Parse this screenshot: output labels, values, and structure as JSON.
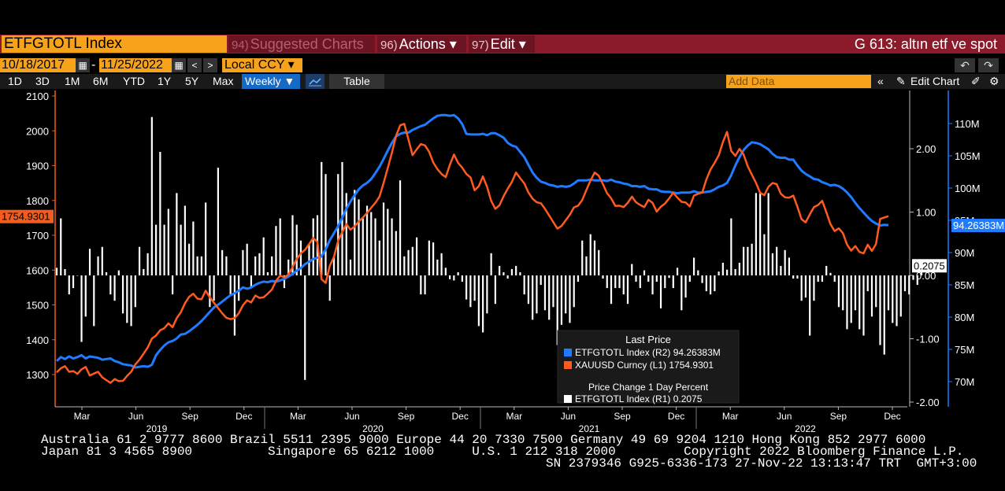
{
  "header": {
    "ticker": "ETFGTOTL Index",
    "tabs": [
      {
        "num": "94)",
        "label": "Suggested Charts"
      },
      {
        "num": "96)",
        "label": "Actions ▾"
      },
      {
        "num": "97)",
        "label": "Edit ▾"
      }
    ],
    "title": "G 613: altın etf ve spot"
  },
  "dates": {
    "start": "10/18/2017",
    "end": "11/25/2022",
    "currency": "Local CCY ▾"
  },
  "toolbar": {
    "ranges": [
      "1D",
      "3D",
      "1M",
      "6M",
      "YTD",
      "1Y",
      "5Y",
      "Max"
    ],
    "frequency": "Weekly ▼",
    "table_label": "Table",
    "add_data_placeholder": "Add Data",
    "edit_chart": "Edit Chart"
  },
  "colors": {
    "etf": "#1f7bff",
    "gold": "#ff5a1f",
    "bars": "#ffffff",
    "accent": "#f7a21b"
  },
  "chart_data": {
    "type": "line",
    "xaxis": {
      "month_ticks": [
        "Mar",
        "Jun",
        "Sep",
        "Dec",
        "Mar",
        "Jun",
        "Sep",
        "Dec",
        "Mar",
        "Jun",
        "Sep",
        "Dec",
        "Mar",
        "Jun",
        "Sep",
        "Dec"
      ],
      "year_labels": [
        "2019",
        "2020",
        "2021",
        "2022"
      ]
    },
    "left_axis": {
      "label": "L1",
      "ticks": [
        1300,
        1400,
        1500,
        1600,
        1700,
        1800,
        1900,
        2000,
        2100
      ],
      "range": [
        1190,
        2120
      ]
    },
    "right_axis_1": {
      "label": "R1",
      "ticks": [
        "2.00",
        "1.00",
        "0.00",
        "-1.00",
        "-2.00"
      ],
      "range": [
        -2.2,
        2.9
      ]
    },
    "right_axis_2": {
      "label": "R2",
      "ticks": [
        "110M",
        "105M",
        "100M",
        "95M",
        "90M",
        "85M",
        "80M",
        "75M",
        "70M"
      ],
      "range": [
        67.5,
        117.5
      ]
    },
    "legend": {
      "title1": "Last Price",
      "entries1": [
        {
          "name": "ETFGTOTL Index",
          "axis": "(R2)",
          "value": "94.26383M",
          "color": "#1f7bff"
        },
        {
          "name": "XAUUSD Curncy",
          "axis": "(L1)",
          "value": "1754.9301",
          "color": "#ff5a1f"
        }
      ],
      "title2": "Price Change 1 Day Percent",
      "entries2": [
        {
          "name": "ETFGTOTL Index",
          "axis": "(R1)",
          "value": "0.2075",
          "color": "#ffffff"
        }
      ]
    },
    "last_labels": {
      "gold": "1754.9301",
      "etf": "94.26383M",
      "change": "0.2075"
    },
    "series": [
      {
        "name": "XAUUSD Curncy",
        "axis": "L1",
        "values": [
          1306,
          1318,
          1324,
          1308,
          1310,
          1302,
          1315,
          1322,
          1297,
          1303,
          1308,
          1292,
          1284,
          1276,
          1287,
          1281,
          1282,
          1296,
          1308,
          1329,
          1343,
          1360,
          1378,
          1403,
          1412,
          1427,
          1433,
          1447,
          1436,
          1462,
          1479,
          1505,
          1523,
          1532,
          1518,
          1516,
          1541,
          1522,
          1506,
          1491,
          1476,
          1463,
          1459,
          1462,
          1476,
          1499,
          1513,
          1507,
          1527,
          1520,
          1522,
          1532,
          1544,
          1569,
          1584,
          1579,
          1587,
          1609,
          1632,
          1648,
          1658,
          1675,
          1692,
          1681,
          1574,
          1563,
          1612,
          1638,
          1684,
          1709,
          1732,
          1716,
          1725,
          1740,
          1751,
          1764,
          1779,
          1793,
          1811,
          1850,
          1893,
          1937,
          1985,
          2016,
          2020,
          1975,
          1930,
          1947,
          1962,
          1958,
          1940,
          1909,
          1890,
          1876,
          1867,
          1902,
          1932,
          1908,
          1894,
          1876,
          1866,
          1829,
          1841,
          1869,
          1839,
          1799,
          1776,
          1786,
          1812,
          1834,
          1853,
          1880,
          1864,
          1849,
          1823,
          1805,
          1795,
          1792,
          1776,
          1757,
          1738,
          1719,
          1727,
          1743,
          1759,
          1780,
          1785,
          1801,
          1830,
          1857,
          1880,
          1871,
          1847,
          1821,
          1806,
          1784,
          1785,
          1781,
          1793,
          1811,
          1795,
          1787,
          1781,
          1802,
          1793,
          1768,
          1782,
          1791,
          1806,
          1822,
          1808,
          1796,
          1794,
          1783,
          1814,
          1819,
          1823,
          1860,
          1889,
          1908,
          1930,
          1968,
          1997,
          1942,
          1928,
          1948,
          1932,
          1898,
          1874,
          1850,
          1822,
          1815,
          1839,
          1850,
          1847,
          1819,
          1809,
          1808,
          1814,
          1782,
          1746,
          1737,
          1760,
          1781,
          1787,
          1799,
          1766,
          1732,
          1712,
          1720,
          1706,
          1673,
          1656,
          1669,
          1652,
          1648,
          1673,
          1655,
          1675,
          1747,
          1751,
          1754.93
        ]
      },
      {
        "name": "ETFGTOTL Index",
        "axis": "R2",
        "values": [
          73.2,
          73.8,
          73.5,
          73.9,
          73.6,
          73.8,
          74.1,
          73.6,
          73.9,
          73.8,
          73.7,
          73.4,
          73.5,
          73.6,
          73.2,
          73.0,
          72.7,
          72.6,
          72.5,
          72.2,
          72.3,
          72.4,
          72.3,
          72.6,
          74.1,
          74.9,
          75.6,
          76.1,
          76.3,
          76.7,
          77.3,
          77.4,
          77.8,
          78.3,
          78.8,
          79.4,
          80.1,
          80.8,
          81.5,
          81.9,
          82.4,
          82.9,
          83.4,
          83.7,
          84.1,
          84.6,
          84.4,
          84.6,
          85.0,
          85.3,
          85.5,
          85.4,
          85.6,
          85.5,
          85.7,
          85.9,
          86.3,
          86.7,
          87.2,
          87.6,
          88.2,
          88.6,
          89.0,
          89.2,
          89.4,
          90.5,
          91.9,
          93.0,
          94.1,
          95.4,
          96.8,
          97.9,
          98.9,
          99.8,
          100.4,
          100.8,
          101.4,
          102.3,
          103.3,
          104.5,
          105.8,
          107.0,
          108.0,
          108.4,
          108.6,
          108.6,
          109.0,
          109.3,
          109.6,
          109.8,
          110.3,
          110.8,
          111.2,
          111.3,
          111.3,
          111.2,
          111.3,
          110.8,
          109.9,
          108.4,
          108.3,
          108.3,
          108.3,
          108.4,
          108.2,
          108.5,
          108.5,
          108.2,
          107.8,
          107.0,
          106.6,
          106.4,
          105.6,
          104.8,
          103.6,
          102.4,
          101.6,
          101.0,
          100.8,
          100.5,
          100.4,
          100.2,
          100.3,
          100.2,
          100.3,
          100.7,
          101.2,
          101.2,
          101.2,
          101.3,
          101.2,
          101.2,
          101.2,
          101.1,
          101.3,
          101.0,
          100.9,
          100.7,
          100.6,
          100.3,
          100.3,
          100.2,
          100.3,
          99.9,
          99.8,
          99.8,
          99.5,
          99.4,
          99.4,
          99.3,
          99.2,
          99.3,
          99.3,
          99.3,
          99.5,
          99.3,
          99.3,
          99.4,
          99.5,
          99.8,
          100.2,
          100.4,
          100.8,
          102.0,
          103.5,
          104.8,
          105.9,
          106.6,
          107.1,
          107.0,
          106.8,
          106.4,
          106.0,
          105.3,
          104.8,
          104.7,
          104.7,
          104.4,
          104.4,
          103.5,
          102.7,
          102.2,
          101.8,
          101.4,
          101.3,
          100.9,
          100.7,
          100.4,
          100.5,
          100.3,
          99.9,
          99.3,
          98.6,
          97.7,
          96.9,
          96.2,
          95.5,
          94.9,
          94.5,
          94.2,
          94.3,
          94.26
        ]
      },
      {
        "name": "ETFGTOTL Index",
        "axis": "R1",
        "type": "bar",
        "values": [
          0.12,
          0.9,
          0.1,
          -0.3,
          -0.2,
          0.0,
          -1.05,
          -0.65,
          0.42,
          -0.8,
          0.3,
          0.45,
          0.05,
          -0.3,
          -0.4,
          0.08,
          -0.6,
          -0.75,
          -0.8,
          -0.5,
          0.45,
          0.1,
          0.35,
          2.5,
          0.8,
          1.95,
          0.8,
          1.05,
          -0.3,
          1.3,
          0.8,
          1.1,
          0.5,
          0.85,
          0.3,
          0.3,
          1.15,
          -0.5,
          -0.4,
          1.7,
          0.4,
          0.3,
          -0.3,
          -0.95,
          -0.4,
          0.4,
          0.5,
          -0.2,
          0.3,
          0.35,
          0.6,
          0.05,
          0.3,
          0.78,
          0.9,
          -0.2,
          0.25,
          0.95,
          0.8,
          0.55,
          -1.65,
          0.5,
          0.9,
          0.95,
          1.79,
          1.6,
          -0.4,
          0.3,
          1.6,
          1.79,
          1.3,
          0.25,
          1.35,
          1.2,
          0.9,
          1.1,
          1.0,
          0.9,
          0.55,
          1.15,
          1.05,
          0.9,
          0.7,
          1.5,
          0.3,
          0.4,
          0.45,
          0.6,
          -0.3,
          -0.3,
          0.55,
          0.52,
          0.25,
          0.35,
          0.12,
          -0.06,
          -0.08,
          0.05,
          -0.1,
          -0.38,
          -0.5,
          -0.4,
          -0.8,
          -0.9,
          -0.6,
          0.35,
          -0.45,
          0.15,
          0.05,
          -0.05,
          0.1,
          0.15,
          0.05,
          -0.3,
          -0.45,
          -0.7,
          -0.6,
          -0.15,
          -0.55,
          -0.7,
          -0.5,
          -1.1,
          -0.78,
          -0.6,
          -0.75,
          -0.5,
          -0.1,
          0.55,
          0.3,
          0.65,
          0.55,
          0.4,
          -0.05,
          -0.2,
          -0.45,
          -0.2,
          -0.2,
          -0.3,
          -0.45,
          0.18,
          -0.1,
          -0.2,
          0.08,
          -0.1,
          -0.3,
          -0.1,
          -0.52,
          -0.2,
          -0.04,
          -0.2,
          0.12,
          -0.55,
          -0.35,
          -0.1,
          0.28,
          0.08,
          -0.12,
          -0.25,
          -0.3,
          -0.25,
          0.06,
          0.2,
          0.09,
          0.9,
          0.1,
          0.2,
          0.45,
          0.45,
          0.5,
          1.3,
          1.3,
          0.65,
          1.3,
          0.35,
          0.45,
          0.15,
          0.4,
          0.28,
          -0.05,
          -0.05,
          -0.4,
          -0.35,
          -0.95,
          -0.4,
          -0.1,
          -0.1,
          0.15,
          0.04,
          -0.1,
          -0.5,
          -0.55,
          -0.85,
          -0.75,
          -0.55,
          -0.85,
          -0.95,
          -0.25,
          -0.65,
          -0.5,
          -1.1,
          -1.25,
          -0.55,
          -0.75,
          -0.8,
          -0.65,
          -0.25,
          -0.3,
          -0.07,
          -0.15,
          0.2075
        ]
      }
    ]
  }
}
